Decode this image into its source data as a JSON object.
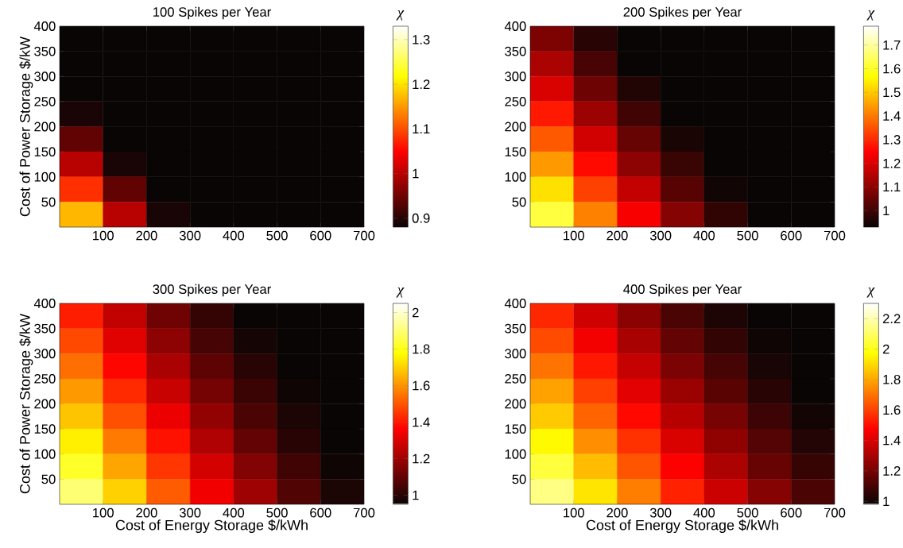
{
  "chart_data": [
    {
      "type": "heatmap",
      "title": "100 Spikes per Year",
      "ylabel": "Cost of Power Storage $/kW",
      "clabel": "χ",
      "xlim": [
        0,
        700
      ],
      "ylim": [
        0,
        400
      ],
      "xticks": [
        100,
        200,
        300,
        400,
        500,
        600,
        700
      ],
      "yticks": [
        50,
        100,
        150,
        200,
        250,
        300,
        350,
        400
      ],
      "clim": [
        0.88,
        1.33
      ],
      "cticks": [
        0.9,
        1,
        1.1,
        1.2,
        1.3
      ],
      "cells": [
        [
          0.88,
          0.88,
          0.88,
          0.88,
          0.88,
          0.88,
          0.88
        ],
        [
          0.88,
          0.88,
          0.88,
          0.88,
          0.88,
          0.88,
          0.88
        ],
        [
          0.88,
          0.88,
          0.88,
          0.88,
          0.88,
          0.88,
          0.88
        ],
        [
          0.89,
          0.88,
          0.88,
          0.88,
          0.88,
          0.88,
          0.88
        ],
        [
          0.94,
          0.88,
          0.88,
          0.88,
          0.88,
          0.88,
          0.88
        ],
        [
          1.0,
          0.89,
          0.88,
          0.88,
          0.88,
          0.88,
          0.88
        ],
        [
          1.08,
          0.94,
          0.88,
          0.88,
          0.88,
          0.88,
          0.88
        ],
        [
          1.17,
          1.0,
          0.89,
          0.88,
          0.88,
          0.88,
          0.88
        ]
      ]
    },
    {
      "type": "heatmap",
      "title": "200 Spikes per Year",
      "clabel": "χ",
      "xlim": [
        0,
        700
      ],
      "ylim": [
        0,
        400
      ],
      "xticks": [
        100,
        200,
        300,
        400,
        500,
        600,
        700
      ],
      "yticks": [
        50,
        100,
        150,
        200,
        250,
        300,
        350,
        400
      ],
      "clim": [
        0.93,
        1.78
      ],
      "cticks": [
        1,
        1.1,
        1.2,
        1.3,
        1.4,
        1.5,
        1.6,
        1.7
      ],
      "cells": [
        [
          1.08,
          0.97,
          0.93,
          0.93,
          0.93,
          0.93,
          0.93
        ],
        [
          1.14,
          1.01,
          0.93,
          0.93,
          0.93,
          0.93,
          0.93
        ],
        [
          1.2,
          1.06,
          0.96,
          0.93,
          0.93,
          0.93,
          0.93
        ],
        [
          1.28,
          1.12,
          1.0,
          0.93,
          0.93,
          0.93,
          0.93
        ],
        [
          1.36,
          1.19,
          1.05,
          0.95,
          0.93,
          0.93,
          0.93
        ],
        [
          1.44,
          1.26,
          1.1,
          0.99,
          0.93,
          0.93,
          0.93
        ],
        [
          1.53,
          1.33,
          1.17,
          1.03,
          0.94,
          0.93,
          0.93
        ],
        [
          1.62,
          1.41,
          1.24,
          1.09,
          0.98,
          0.93,
          0.93
        ]
      ]
    },
    {
      "type": "heatmap",
      "title": "300 Spikes per Year",
      "xlabel": "Cost of Energy Storage $/kWh",
      "ylabel": "Cost of Power Storage $/kW",
      "clabel": "χ",
      "xlim": [
        0,
        700
      ],
      "ylim": [
        0,
        400
      ],
      "xticks": [
        100,
        200,
        300,
        400,
        500,
        600,
        700
      ],
      "yticks": [
        50,
        100,
        150,
        200,
        250,
        300,
        350,
        400
      ],
      "clim": [
        0.95,
        2.05
      ],
      "cticks": [
        1,
        1.2,
        1.4,
        1.6,
        1.8,
        2
      ],
      "cells": [
        [
          1.41,
          1.26,
          1.12,
          1.02,
          0.95,
          0.95,
          0.95
        ],
        [
          1.48,
          1.31,
          1.17,
          1.05,
          0.97,
          0.95,
          0.95
        ],
        [
          1.54,
          1.37,
          1.22,
          1.09,
          1.0,
          0.95,
          0.95
        ],
        [
          1.61,
          1.43,
          1.27,
          1.13,
          1.03,
          0.96,
          0.95
        ],
        [
          1.68,
          1.49,
          1.33,
          1.18,
          1.06,
          0.98,
          0.95
        ],
        [
          1.75,
          1.56,
          1.39,
          1.23,
          1.1,
          1.0,
          0.95
        ],
        [
          1.82,
          1.63,
          1.45,
          1.29,
          1.15,
          1.04,
          0.96
        ],
        [
          1.9,
          1.7,
          1.51,
          1.34,
          1.2,
          1.07,
          0.98
        ]
      ]
    },
    {
      "type": "heatmap",
      "title": "400 Spikes per Year",
      "xlabel": "Cost of Energy Storage $/kWh",
      "clabel": "χ",
      "xlim": [
        0,
        700
      ],
      "ylim": [
        0,
        400
      ],
      "xticks": [
        100,
        200,
        300,
        400,
        500,
        600,
        700
      ],
      "yticks": [
        50,
        100,
        150,
        200,
        250,
        300,
        350,
        400
      ],
      "clim": [
        0.98,
        2.3
      ],
      "cticks": [
        1,
        1.2,
        1.4,
        1.6,
        1.8,
        2,
        2.2
      ],
      "cells": [
        [
          1.55,
          1.38,
          1.24,
          1.11,
          1.02,
          0.98,
          0.98
        ],
        [
          1.62,
          1.45,
          1.3,
          1.16,
          1.06,
          0.99,
          0.98
        ],
        [
          1.7,
          1.52,
          1.36,
          1.21,
          1.1,
          1.01,
          0.98
        ],
        [
          1.79,
          1.6,
          1.42,
          1.27,
          1.14,
          1.04,
          0.98
        ],
        [
          1.87,
          1.67,
          1.49,
          1.33,
          1.2,
          1.08,
          1.0
        ],
        [
          1.96,
          1.75,
          1.57,
          1.4,
          1.25,
          1.13,
          1.03
        ],
        [
          2.05,
          1.84,
          1.64,
          1.47,
          1.31,
          1.17,
          1.07
        ],
        [
          2.14,
          1.92,
          1.72,
          1.54,
          1.37,
          1.23,
          1.11
        ]
      ]
    }
  ]
}
